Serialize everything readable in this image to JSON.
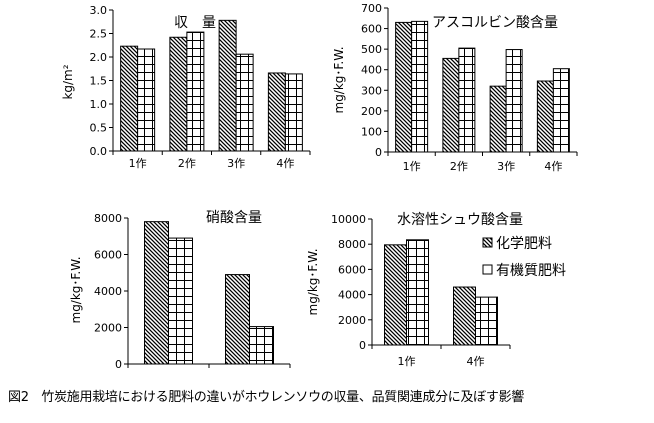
{
  "caption": "図2　竹炭施用栽培における肥料の違いがホウレンソウの収量、品質関連成分に及ぼす影響",
  "legend": [
    "化学肥料",
    "有機質肥料"
  ],
  "chart_data": [
    {
      "type": "bar",
      "title": "収　量",
      "ylabel": "kg/m²",
      "ylim": [
        0,
        3.0
      ],
      "yticks": [
        "0.0",
        "0.5",
        "1.0",
        "1.5",
        "2.0",
        "2.5",
        "3.0"
      ],
      "categories": [
        "1作",
        "2作",
        "3作",
        "4作"
      ],
      "series": [
        {
          "name": "化学肥料",
          "values": [
            2.23,
            2.42,
            2.78,
            1.66
          ]
        },
        {
          "name": "有機質肥料",
          "values": [
            2.17,
            2.53,
            2.06,
            1.64
          ]
        }
      ]
    },
    {
      "type": "bar",
      "title": "アスコルビン酸含量",
      "ylabel": "mg/kg･F.W.",
      "ylim": [
        0,
        700
      ],
      "yticks": [
        "0",
        "100",
        "200",
        "300",
        "400",
        "500",
        "600",
        "700"
      ],
      "categories": [
        "1作",
        "2作",
        "3作",
        "4作"
      ],
      "series": [
        {
          "name": "化学肥料",
          "values": [
            630,
            455,
            320,
            345
          ]
        },
        {
          "name": "有機質肥料",
          "values": [
            635,
            505,
            498,
            405
          ]
        }
      ]
    },
    {
      "type": "bar",
      "title": "硝酸含量",
      "ylabel": "mg/kg･F.W.",
      "ylim": [
        0,
        8000
      ],
      "yticks": [
        "0",
        "2000",
        "4000",
        "6000",
        "8000"
      ],
      "categories": [
        "",
        ""
      ],
      "series": [
        {
          "name": "化学肥料",
          "values": [
            7800,
            4900
          ]
        },
        {
          "name": "有機質肥料",
          "values": [
            6900,
            2050
          ]
        }
      ]
    },
    {
      "type": "bar",
      "title": "水溶性シュウ酸含量",
      "ylabel": "mg/kg･F.W.",
      "ylim": [
        0,
        10000
      ],
      "yticks": [
        "0",
        "2000",
        "4000",
        "6000",
        "8000",
        "10000"
      ],
      "categories": [
        "1作",
        "4作"
      ],
      "series": [
        {
          "name": "化学肥料",
          "values": [
            7950,
            4600
          ]
        },
        {
          "name": "有機質肥料",
          "values": [
            8350,
            3800
          ]
        }
      ],
      "legend": "right"
    }
  ]
}
